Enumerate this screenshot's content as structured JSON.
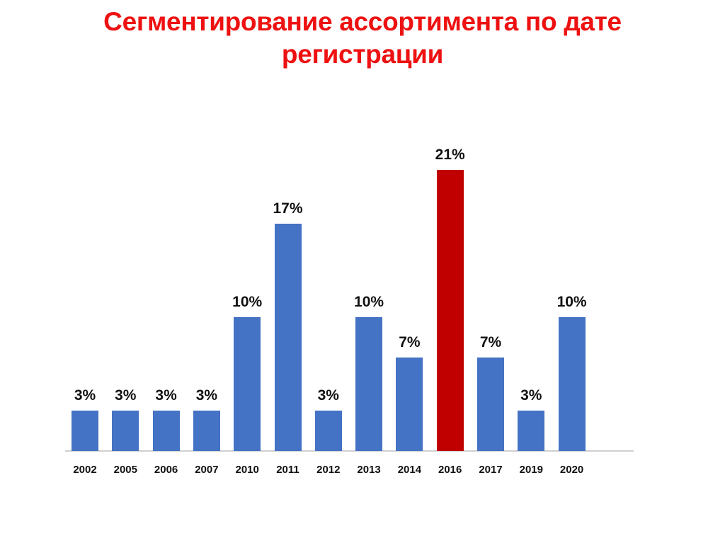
{
  "title": {
    "line1": "Сегментирование ассортимента по дате",
    "line2": "регистрации"
  },
  "colors": {
    "title": "#ee1111",
    "bar_default": "#4472c4",
    "bar_highlight": "#c00000",
    "axis": "#d0d0d0"
  },
  "chart_data": {
    "type": "bar",
    "title": "Сегментирование ассортимента по дате регистрации",
    "xlabel": "",
    "ylabel": "",
    "categories": [
      "2002",
      "2005",
      "2006",
      "2007",
      "2010",
      "2011",
      "2012",
      "2013",
      "2014",
      "2016",
      "2017",
      "2019",
      "2020"
    ],
    "values": [
      3,
      3,
      3,
      3,
      10,
      17,
      3,
      10,
      7,
      21,
      7,
      3,
      10
    ],
    "value_labels": [
      "3%",
      "3%",
      "3%",
      "3%",
      "10%",
      "17%",
      "3%",
      "10%",
      "7%",
      "21%",
      "7%",
      "3%",
      "10%"
    ],
    "unit": "%",
    "highlight": {
      "category": "2016",
      "color": "#c00000"
    },
    "grid": false,
    "legend": null,
    "ylim": [
      0,
      21
    ]
  }
}
